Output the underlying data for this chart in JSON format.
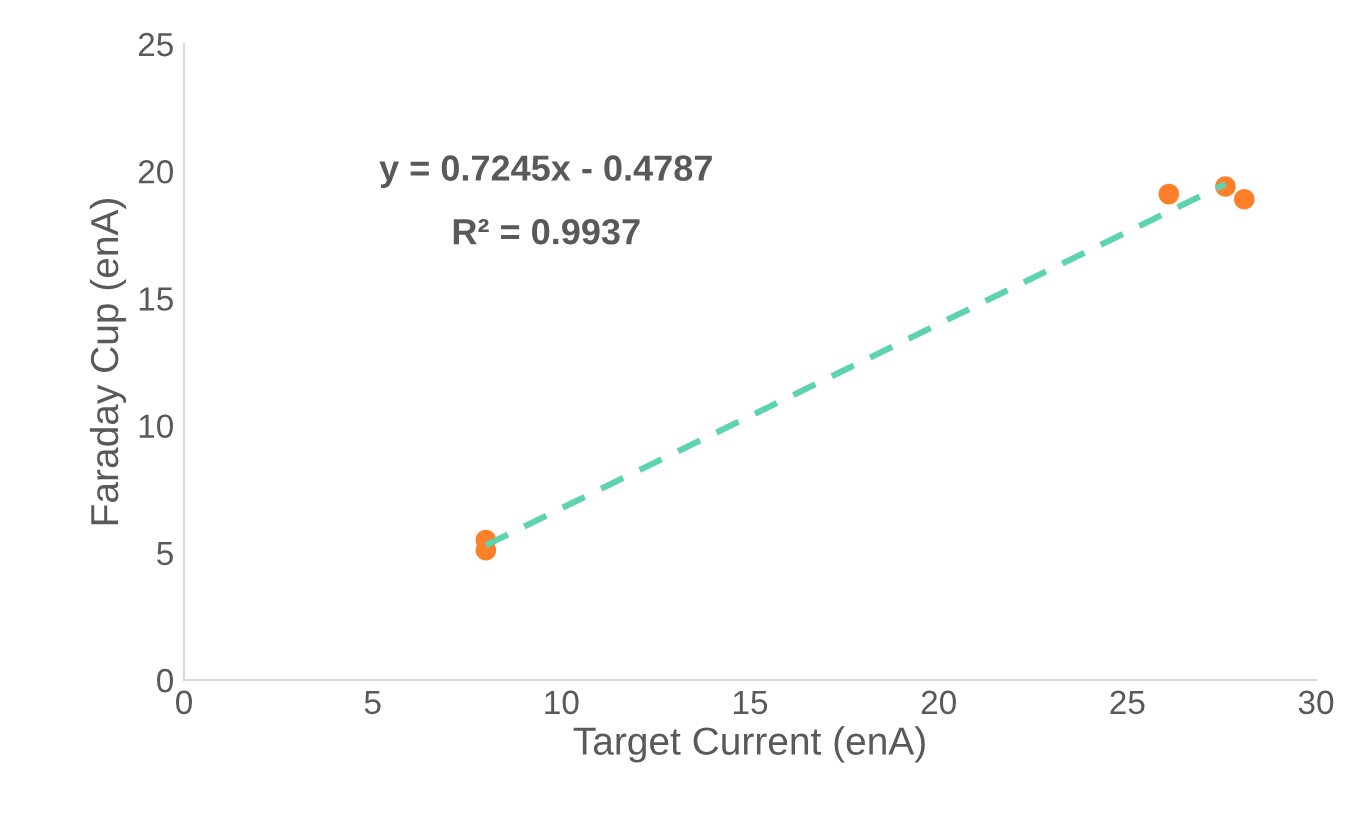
{
  "chart_data": {
    "type": "scatter",
    "xlabel": "Target Current (enA)",
    "ylabel": "Faraday Cup (enA)",
    "xlim": [
      0,
      30
    ],
    "xticks": [
      0,
      5,
      10,
      15,
      20,
      25,
      30
    ],
    "ylim": [
      0,
      25
    ],
    "yticks": [
      0,
      5,
      10,
      15,
      20,
      25
    ],
    "grid": false,
    "series": [
      {
        "marker": "circle",
        "color": "#fd7f2a",
        "x": [
          8.0,
          8.0,
          26.1,
          27.6,
          28.1
        ],
        "values": [
          5.5,
          5.1,
          19.1,
          19.4,
          18.9
        ]
      },
      {
        "type": "line",
        "marker": "none",
        "color": "#5ed3b0",
        "line_style": "dashed",
        "x": [
          8.0,
          27.6
        ],
        "values": [
          5.3,
          19.5
        ]
      }
    ],
    "annotations": [
      "y = 0.7245x - 0.4787",
      "R² = 0.9937"
    ]
  }
}
